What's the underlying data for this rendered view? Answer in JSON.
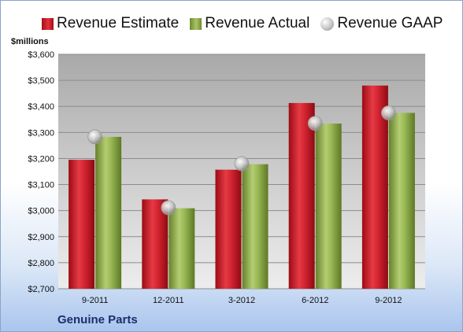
{
  "legend": {
    "estimate": "Revenue Estimate",
    "actual": "Revenue Actual",
    "gaap": "Revenue GAAP"
  },
  "unit_label": "$millions",
  "company": "Genuine Parts",
  "colors": {
    "estimate": "#c8202b",
    "actual": "#8fae4a",
    "gaap": "#c0c0c0"
  },
  "chart_data": {
    "type": "bar",
    "title": "",
    "xlabel": "",
    "ylabel": "$millions",
    "categories": [
      "9-2011",
      "12-2011",
      "3-2012",
      "6-2012",
      "9-2012"
    ],
    "series": [
      {
        "name": "Revenue Estimate",
        "type": "bar",
        "values": [
          3195,
          3043,
          3157,
          3413,
          3480
        ]
      },
      {
        "name": "Revenue Actual",
        "type": "bar",
        "values": [
          3283,
          3009,
          3178,
          3334,
          3375
        ]
      },
      {
        "name": "Revenue GAAP",
        "type": "scatter",
        "values": [
          3283,
          3011,
          3180,
          3335,
          3375
        ]
      }
    ],
    "ylim": [
      2700,
      3600
    ],
    "yticks": [
      2700,
      2800,
      2900,
      3000,
      3100,
      3200,
      3300,
      3400,
      3500,
      3600
    ],
    "ytick_labels": [
      "$2,700",
      "$2,800",
      "$2,900",
      "$3,000",
      "$3,100",
      "$3,200",
      "$3,300",
      "$3,400",
      "$3,500",
      "$3,600"
    ],
    "grid": true,
    "legend_position": "top"
  }
}
